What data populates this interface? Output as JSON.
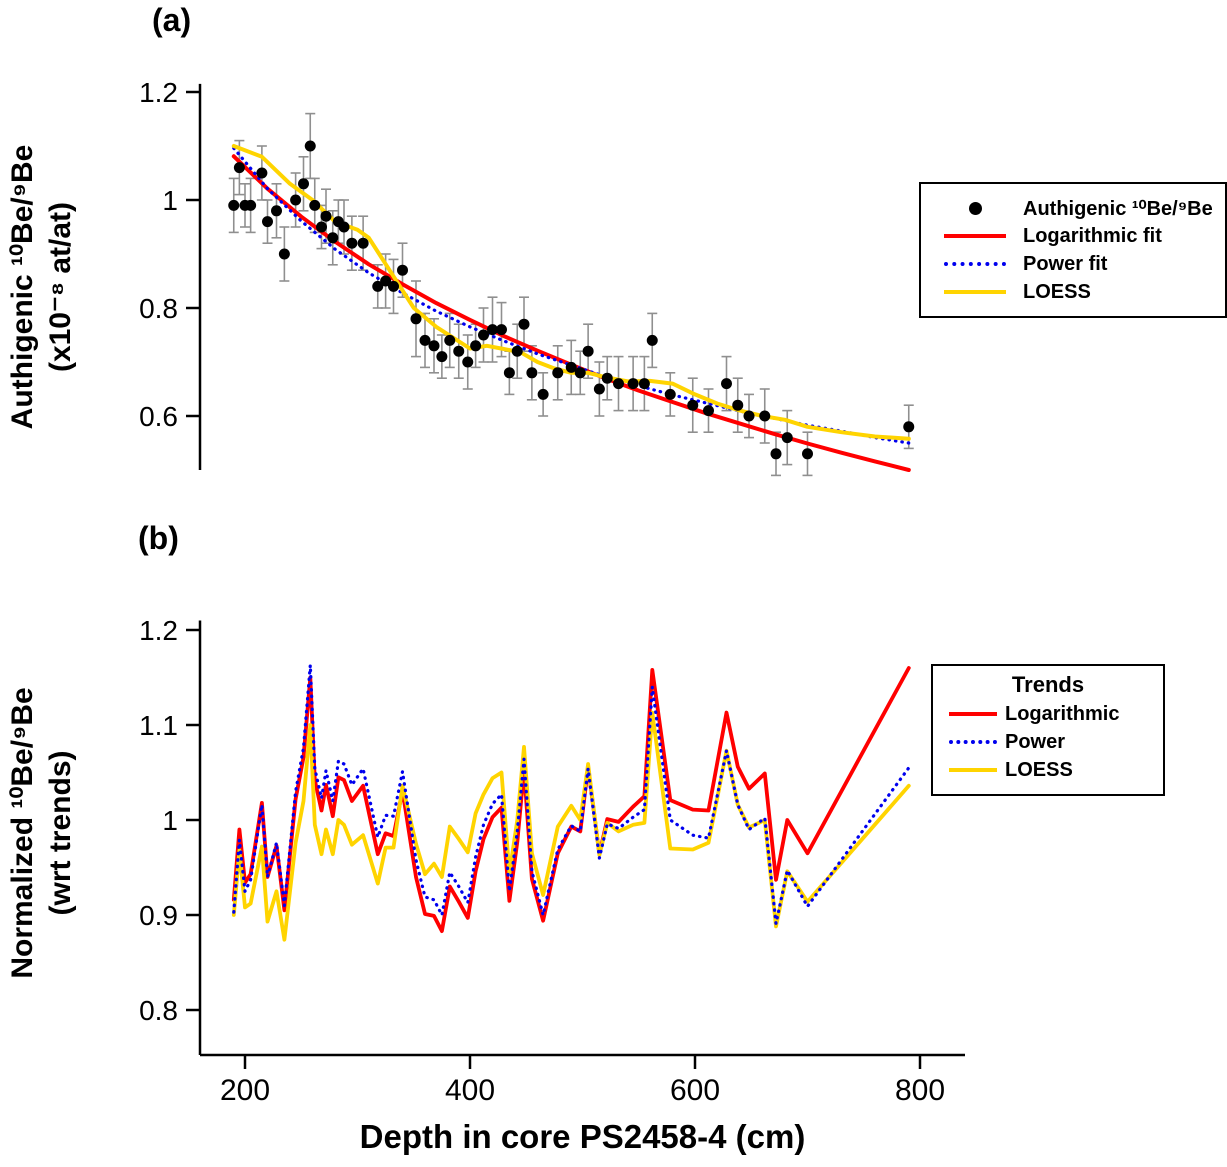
{
  "colors": {
    "scatter": "#000000",
    "logarithmic": "#ff0000",
    "power": "#0000ee",
    "loess": "#ffd400",
    "error_bar": "#8f8f8f",
    "axis": "#000000"
  },
  "x_axis": {
    "title": "Depth in core PS2458-4 (cm)",
    "range": [
      160,
      840
    ],
    "ticks": [
      200,
      400,
      600,
      800
    ],
    "tick_labels": [
      "200",
      "400",
      "600",
      "800"
    ]
  },
  "chart_data": [
    {
      "panel": "a",
      "type": "scatter",
      "label": "(a)",
      "ylabel": [
        "Authigenic ¹⁰Be/⁹Be",
        "(x10⁻⁸ at/at)"
      ],
      "ylim": [
        0.5,
        1.215
      ],
      "yticks": [
        0.6,
        0.8,
        1,
        1.2
      ],
      "ytick_labels": [
        "0.6",
        "0.8",
        "1",
        "1.2"
      ],
      "grid": false,
      "legend_position": "right",
      "scatter": {
        "name": "Authigenic ¹⁰Be/⁹Be",
        "x": [
          190,
          195,
          200,
          205,
          215,
          220,
          228,
          235,
          245,
          252,
          258,
          262,
          268,
          272,
          278,
          283,
          288,
          295,
          305,
          318,
          325,
          332,
          340,
          352,
          360,
          368,
          375,
          382,
          390,
          398,
          405,
          412,
          420,
          428,
          435,
          442,
          448,
          455,
          465,
          478,
          490,
          498,
          505,
          515,
          522,
          532,
          545,
          555,
          562,
          578,
          598,
          612,
          628,
          638,
          648,
          662,
          672,
          682,
          700,
          790
        ],
        "y": [
          0.99,
          1.06,
          0.99,
          0.99,
          1.05,
          0.96,
          0.98,
          0.9,
          1.0,
          1.03,
          1.1,
          0.99,
          0.95,
          0.97,
          0.93,
          0.96,
          0.95,
          0.92,
          0.92,
          0.84,
          0.85,
          0.84,
          0.87,
          0.78,
          0.74,
          0.73,
          0.71,
          0.74,
          0.72,
          0.7,
          0.73,
          0.75,
          0.76,
          0.76,
          0.68,
          0.72,
          0.77,
          0.68,
          0.64,
          0.68,
          0.69,
          0.68,
          0.72,
          0.65,
          0.67,
          0.66,
          0.66,
          0.66,
          0.74,
          0.64,
          0.62,
          0.61,
          0.66,
          0.62,
          0.6,
          0.6,
          0.53,
          0.56,
          0.53,
          0.58
        ],
        "yerr": [
          0.05,
          0.05,
          0.04,
          0.05,
          0.05,
          0.04,
          0.05,
          0.05,
          0.05,
          0.05,
          0.06,
          0.05,
          0.04,
          0.05,
          0.05,
          0.04,
          0.05,
          0.05,
          0.05,
          0.04,
          0.05,
          0.05,
          0.05,
          0.07,
          0.05,
          0.05,
          0.04,
          0.05,
          0.05,
          0.05,
          0.04,
          0.05,
          0.06,
          0.05,
          0.04,
          0.05,
          0.05,
          0.05,
          0.04,
          0.05,
          0.05,
          0.04,
          0.05,
          0.05,
          0.04,
          0.05,
          0.05,
          0.05,
          0.05,
          0.04,
          0.05,
          0.04,
          0.05,
          0.05,
          0.04,
          0.05,
          0.04,
          0.05,
          0.04,
          0.04
        ]
      },
      "series": [
        {
          "name": "Logarithmic fit",
          "color_key": "logarithmic",
          "style": "solid",
          "x": [
            190,
            220,
            250,
            280,
            310,
            340,
            370,
            400,
            430,
            460,
            490,
            520,
            550,
            580,
            610,
            640,
            670,
            700,
            730,
            760,
            790
          ],
          "y": [
            1.081,
            1.021,
            0.969,
            0.923,
            0.881,
            0.844,
            0.809,
            0.778,
            0.748,
            0.721,
            0.695,
            0.67,
            0.647,
            0.626,
            0.605,
            0.586,
            0.567,
            0.549,
            0.532,
            0.516,
            0.5
          ]
        },
        {
          "name": "Power fit",
          "color_key": "power",
          "style": "dotted",
          "x": [
            190,
            220,
            250,
            280,
            310,
            340,
            370,
            400,
            430,
            460,
            490,
            520,
            550,
            580,
            610,
            640,
            670,
            700,
            730,
            760,
            790
          ],
          "y": [
            1.096,
            1.021,
            0.961,
            0.909,
            0.865,
            0.828,
            0.794,
            0.765,
            0.739,
            0.715,
            0.694,
            0.673,
            0.656,
            0.639,
            0.624,
            0.609,
            0.596,
            0.583,
            0.572,
            0.56,
            0.55
          ]
        },
        {
          "name": "LOESS",
          "color_key": "loess",
          "style": "solid",
          "x": [
            190,
            215,
            240,
            260,
            280,
            300,
            310,
            330,
            350,
            370,
            385,
            400,
            415,
            430,
            445,
            460,
            475,
            490,
            505,
            520,
            540,
            560,
            580,
            600,
            620,
            640,
            660,
            680,
            700,
            730,
            760,
            790
          ],
          "y": [
            1.1,
            1.08,
            1.03,
            1.0,
            0.96,
            0.945,
            0.93,
            0.865,
            0.8,
            0.765,
            0.745,
            0.725,
            0.73,
            0.724,
            0.718,
            0.7,
            0.688,
            0.68,
            0.68,
            0.672,
            0.664,
            0.665,
            0.66,
            0.64,
            0.623,
            0.61,
            0.6,
            0.593,
            0.58,
            0.57,
            0.562,
            0.558
          ]
        }
      ],
      "legend": [
        {
          "label": "Authigenic ¹⁰Be/⁹Be",
          "marker": "black-dot"
        },
        {
          "label": "Logarithmic fit",
          "marker": "red-solid-line"
        },
        {
          "label": "Power fit",
          "marker": "blue-dotted-line"
        },
        {
          "label": "LOESS",
          "marker": "yellow-solid-line"
        }
      ]
    },
    {
      "panel": "b",
      "type": "line",
      "label": "(b)",
      "ylabel": [
        "Normalized ¹⁰Be/⁹Be",
        "(wrt trends)"
      ],
      "ylim": [
        0.753,
        1.21
      ],
      "yticks": [
        0.8,
        0.9,
        1,
        1.1,
        1.2
      ],
      "ytick_labels": [
        "0.8",
        "0.9",
        "1",
        "1.1",
        "1.2"
      ],
      "grid": false,
      "legend_title": "Trends",
      "legend_position": "right",
      "x": [
        190,
        195,
        200,
        205,
        215,
        220,
        228,
        235,
        245,
        252,
        258,
        262,
        268,
        272,
        278,
        283,
        288,
        295,
        305,
        318,
        325,
        332,
        340,
        352,
        360,
        368,
        375,
        382,
        390,
        398,
        405,
        412,
        420,
        428,
        435,
        442,
        448,
        455,
        465,
        478,
        490,
        498,
        505,
        515,
        522,
        532,
        545,
        555,
        562,
        578,
        598,
        612,
        628,
        638,
        648,
        662,
        672,
        682,
        700,
        790
      ],
      "series": [
        {
          "name": "Logarithmic",
          "color_key": "logarithmic",
          "style": "solid",
          "y": [
            0.916,
            0.99,
            0.934,
            0.943,
            1.018,
            0.94,
            0.973,
            0.905,
            1.022,
            1.066,
            1.15,
            1.042,
            1.01,
            1.037,
            1.004,
            1.045,
            1.042,
            1.02,
            1.036,
            0.964,
            0.986,
            0.983,
            1.031,
            0.94,
            0.901,
            0.899,
            0.883,
            0.93,
            0.914,
            0.897,
            0.946,
            0.98,
            1.003,
            1.013,
            0.915,
            0.977,
            1.053,
            0.938,
            0.894,
            0.965,
            0.993,
            0.988,
            1.056,
            0.964,
            1.001,
            0.998,
            1.014,
            1.025,
            1.158,
            1.021,
            1.011,
            1.01,
            1.113,
            1.056,
            1.033,
            1.049,
            0.937,
            1.0,
            0.965,
            1.16
          ]
        },
        {
          "name": "Power",
          "color_key": "power",
          "style": "dotted",
          "y": [
            0.903,
            0.979,
            0.925,
            0.937,
            1.016,
            0.94,
            0.976,
            0.91,
            1.03,
            1.076,
            1.163,
            1.054,
            1.023,
            1.052,
            1.02,
            1.062,
            1.059,
            1.037,
            1.054,
            0.982,
            1.005,
            1.004,
            1.051,
            0.958,
            0.919,
            0.916,
            0.9,
            0.945,
            0.93,
            0.913,
            0.961,
            0.995,
            1.017,
            1.027,
            0.925,
            0.988,
            1.064,
            0.946,
            0.9,
            0.969,
            0.994,
            0.988,
            1.054,
            0.96,
            0.996,
            0.991,
            1.003,
            1.011,
            1.14,
            1.0,
            0.984,
            0.981,
            1.073,
            1.016,
            0.99,
            1.002,
            0.891,
            0.947,
            0.909,
            1.055
          ]
        },
        {
          "name": "LOESS",
          "color_key": "loess",
          "style": "solid",
          "y": [
            0.9,
            0.968,
            0.908,
            0.912,
            0.972,
            0.893,
            0.925,
            0.874,
            0.976,
            1.02,
            1.1,
            0.995,
            0.964,
            0.99,
            0.964,
            1.0,
            0.995,
            0.974,
            0.984,
            0.933,
            0.971,
            0.971,
            1.036,
            0.975,
            0.943,
            0.954,
            0.94,
            0.993,
            0.98,
            0.966,
            1.007,
            1.027,
            1.044,
            1.05,
            0.944,
            1.0,
            1.077,
            0.965,
            0.921,
            0.993,
            1.015,
            1.0,
            1.059,
            0.963,
            0.997,
            0.988,
            0.995,
            0.997,
            1.113,
            0.97,
            0.969,
            0.976,
            1.073,
            1.016,
            0.992,
            1.0,
            0.888,
            0.946,
            0.914,
            1.036
          ]
        }
      ],
      "legend": [
        {
          "label": "Logarithmic",
          "marker": "red-solid-line"
        },
        {
          "label": "Power",
          "marker": "blue-dotted-line"
        },
        {
          "label": "LOESS",
          "marker": "yellow-solid-line"
        }
      ]
    }
  ]
}
